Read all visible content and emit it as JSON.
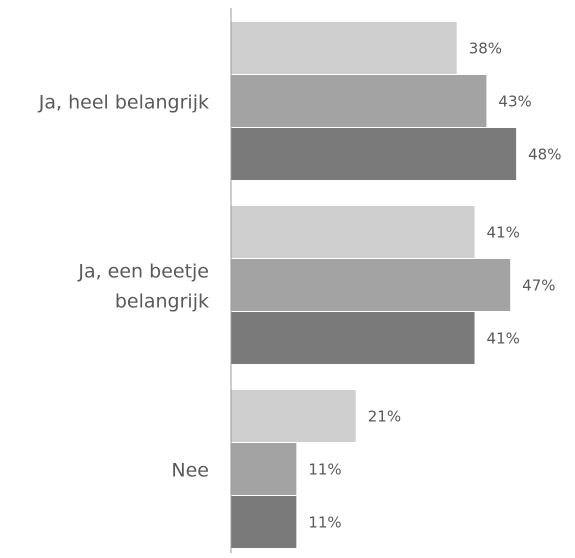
{
  "chart_data": {
    "type": "bar",
    "orientation": "horizontal",
    "categories": [
      [
        "Ja, heel belangrijk"
      ],
      [
        "Ja, een beetje",
        "belangrijk"
      ],
      [
        "Nee"
      ]
    ],
    "series": [
      {
        "values": [
          38,
          41,
          21
        ],
        "color": "#d0cfcf"
      },
      {
        "values": [
          43,
          47,
          11
        ],
        "color": "#a3a3a3"
      },
      {
        "values": [
          48,
          41,
          11
        ],
        "color": "#7a7a7a"
      }
    ],
    "value_suffix": "%",
    "xlim": [
      0,
      52
    ],
    "axis_color": "#9a9a9a",
    "grid": false,
    "legend": "none"
  }
}
